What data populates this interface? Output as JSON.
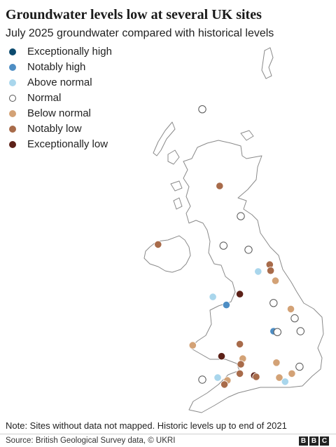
{
  "title": "Groundwater levels low at several UK sites",
  "subtitle": "July 2025 groundwater compared with historical levels",
  "legend": [
    {
      "key": "exceptionally_high",
      "label": "Exceptionally high",
      "color": "#0c4a6e"
    },
    {
      "key": "notably_high",
      "label": "Notably high",
      "color": "#4e8ec4"
    },
    {
      "key": "above_normal",
      "label": "Above normal",
      "color": "#a9d6ec"
    },
    {
      "key": "normal",
      "label": "Normal",
      "color": "#ffffff"
    },
    {
      "key": "below_normal",
      "label": "Below normal",
      "color": "#d3a276"
    },
    {
      "key": "notably_low",
      "label": "Notably low",
      "color": "#a86b4a"
    },
    {
      "key": "exceptionally_low",
      "label": "Exceptionally low",
      "color": "#5c2118"
    }
  ],
  "sites": [
    {
      "cat": "normal",
      "lon": -4.1,
      "lat": 58.1
    },
    {
      "cat": "notably_low",
      "lon": -3.2,
      "lat": 56.2
    },
    {
      "cat": "normal",
      "lon": -2.1,
      "lat": 55.45
    },
    {
      "cat": "notably_low",
      "lon": -6.4,
      "lat": 54.75
    },
    {
      "cat": "normal",
      "lon": -3.0,
      "lat": 54.72
    },
    {
      "cat": "normal",
      "lon": -1.7,
      "lat": 54.62
    },
    {
      "cat": "notably_low",
      "lon": -0.6,
      "lat": 54.25
    },
    {
      "cat": "notably_low",
      "lon": -0.55,
      "lat": 54.1
    },
    {
      "cat": "above_normal",
      "lon": -1.2,
      "lat": 54.08
    },
    {
      "cat": "below_normal",
      "lon": -0.3,
      "lat": 53.85
    },
    {
      "cat": "above_normal",
      "lon": -3.55,
      "lat": 53.45
    },
    {
      "cat": "exceptionally_low",
      "lon": -2.15,
      "lat": 53.52
    },
    {
      "cat": "notably_high",
      "lon": -2.85,
      "lat": 53.25
    },
    {
      "cat": "normal",
      "lon": -0.4,
      "lat": 53.3
    },
    {
      "cat": "below_normal",
      "lon": 0.5,
      "lat": 53.15
    },
    {
      "cat": "normal",
      "lon": 0.7,
      "lat": 52.92
    },
    {
      "cat": "notably_high",
      "lon": -0.4,
      "lat": 52.6
    },
    {
      "cat": "normal",
      "lon": -0.2,
      "lat": 52.58
    },
    {
      "cat": "normal",
      "lon": 1.0,
      "lat": 52.6
    },
    {
      "cat": "below_normal",
      "lon": -4.6,
      "lat": 52.25
    },
    {
      "cat": "notably_low",
      "lon": -2.15,
      "lat": 52.28
    },
    {
      "cat": "exceptionally_low",
      "lon": -3.1,
      "lat": 51.98
    },
    {
      "cat": "below_normal",
      "lon": -2.0,
      "lat": 51.92
    },
    {
      "cat": "notably_low",
      "lon": -2.1,
      "lat": 51.78
    },
    {
      "cat": "below_normal",
      "lon": -0.25,
      "lat": 51.82
    },
    {
      "cat": "normal",
      "lon": 0.95,
      "lat": 51.72
    },
    {
      "cat": "below_normal",
      "lon": 0.55,
      "lat": 51.55
    },
    {
      "cat": "notably_low",
      "lon": -2.15,
      "lat": 51.55
    },
    {
      "cat": "exceptionally_low",
      "lon": -1.4,
      "lat": 51.5
    },
    {
      "cat": "notably_low",
      "lon": -1.3,
      "lat": 51.47
    },
    {
      "cat": "below_normal",
      "lon": -0.1,
      "lat": 51.45
    },
    {
      "cat": "normal",
      "lon": -4.1,
      "lat": 51.4
    },
    {
      "cat": "above_normal",
      "lon": -3.3,
      "lat": 51.45
    },
    {
      "cat": "below_normal",
      "lon": -2.8,
      "lat": 51.38
    },
    {
      "cat": "notably_low",
      "lon": -2.95,
      "lat": 51.28
    },
    {
      "cat": "above_normal",
      "lon": 0.2,
      "lat": 51.35
    }
  ],
  "note": "Note: Sites without data not mapped. Historic levels up to end of 2021",
  "footer": {
    "source": "Source: British Geological Survey data, © UKRI",
    "logo_letters": [
      "B",
      "B",
      "C"
    ]
  }
}
